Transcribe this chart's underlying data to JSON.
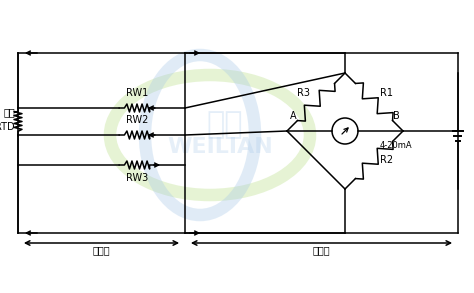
{
  "bg_color": "#ffffff",
  "line_color": "#000000",
  "label_color": "#000000",
  "watermark_green": "#c8e6a0",
  "watermark_blue": "#a8c8e8",
  "label_sensor": "传感器",
  "label_transmitter": "变送器",
  "label_rtd_top": "三线",
  "label_rtd_bot": "RTD",
  "label_rw1": "RW1",
  "label_rw2": "RW2",
  "label_rw3": "RW3",
  "label_r1": "R1",
  "label_r2": "R2",
  "label_r3": "R3",
  "label_A": "A",
  "label_B": "B",
  "label_4_20mA": "4-20mA",
  "font_size": 7.0,
  "font_size_small": 6.0
}
